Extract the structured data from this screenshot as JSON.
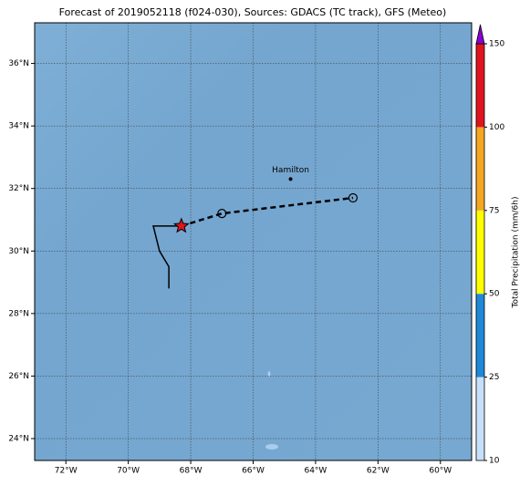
{
  "title": "Forecast of 2019052118 (f024-030), Sources: GDACS (TC track), GFS (Meteo)",
  "map": {
    "lonlim": [
      -73,
      -59
    ],
    "latlim": [
      23.3,
      37.3
    ],
    "lonticks": [
      {
        "value": -72,
        "label": "72°W"
      },
      {
        "value": -70,
        "label": "70°W"
      },
      {
        "value": -68,
        "label": "68°W"
      },
      {
        "value": -66,
        "label": "66°W"
      },
      {
        "value": -64,
        "label": "64°W"
      },
      {
        "value": -62,
        "label": "62°W"
      },
      {
        "value": -60,
        "label": "60°W"
      }
    ],
    "latticks": [
      {
        "value": 24,
        "label": "24°N"
      },
      {
        "value": 26,
        "label": "26°N"
      },
      {
        "value": 28,
        "label": "28°N"
      },
      {
        "value": 30,
        "label": "30°N"
      },
      {
        "value": 32,
        "label": "32°N"
      },
      {
        "value": 34,
        "label": "34°N"
      },
      {
        "value": 36,
        "label": "36°N"
      }
    ],
    "grid": true,
    "forecast_track": {
      "lon": [
        -68.3,
        -67.0,
        -62.8
      ],
      "lat": [
        30.8,
        31.2,
        31.7
      ]
    },
    "past_track": {
      "lon": [
        -68.3,
        -69.2,
        -69.0,
        -68.7,
        -68.7
      ],
      "lat": [
        30.8,
        30.8,
        30.0,
        29.5,
        28.8
      ]
    },
    "cities": [
      {
        "name": "Hamilton",
        "lon": -64.8,
        "lat": 32.3
      }
    ]
  },
  "colorbar": {
    "label": "Total Precipitation (mm/6h)",
    "levels": [
      10,
      25,
      50,
      75,
      100,
      150
    ],
    "colors": [
      "#c6e0fb",
      "#1f88d8",
      "#ffff00",
      "#f5a623",
      "#e0141e"
    ],
    "extend_color": "#8a00d4"
  }
}
